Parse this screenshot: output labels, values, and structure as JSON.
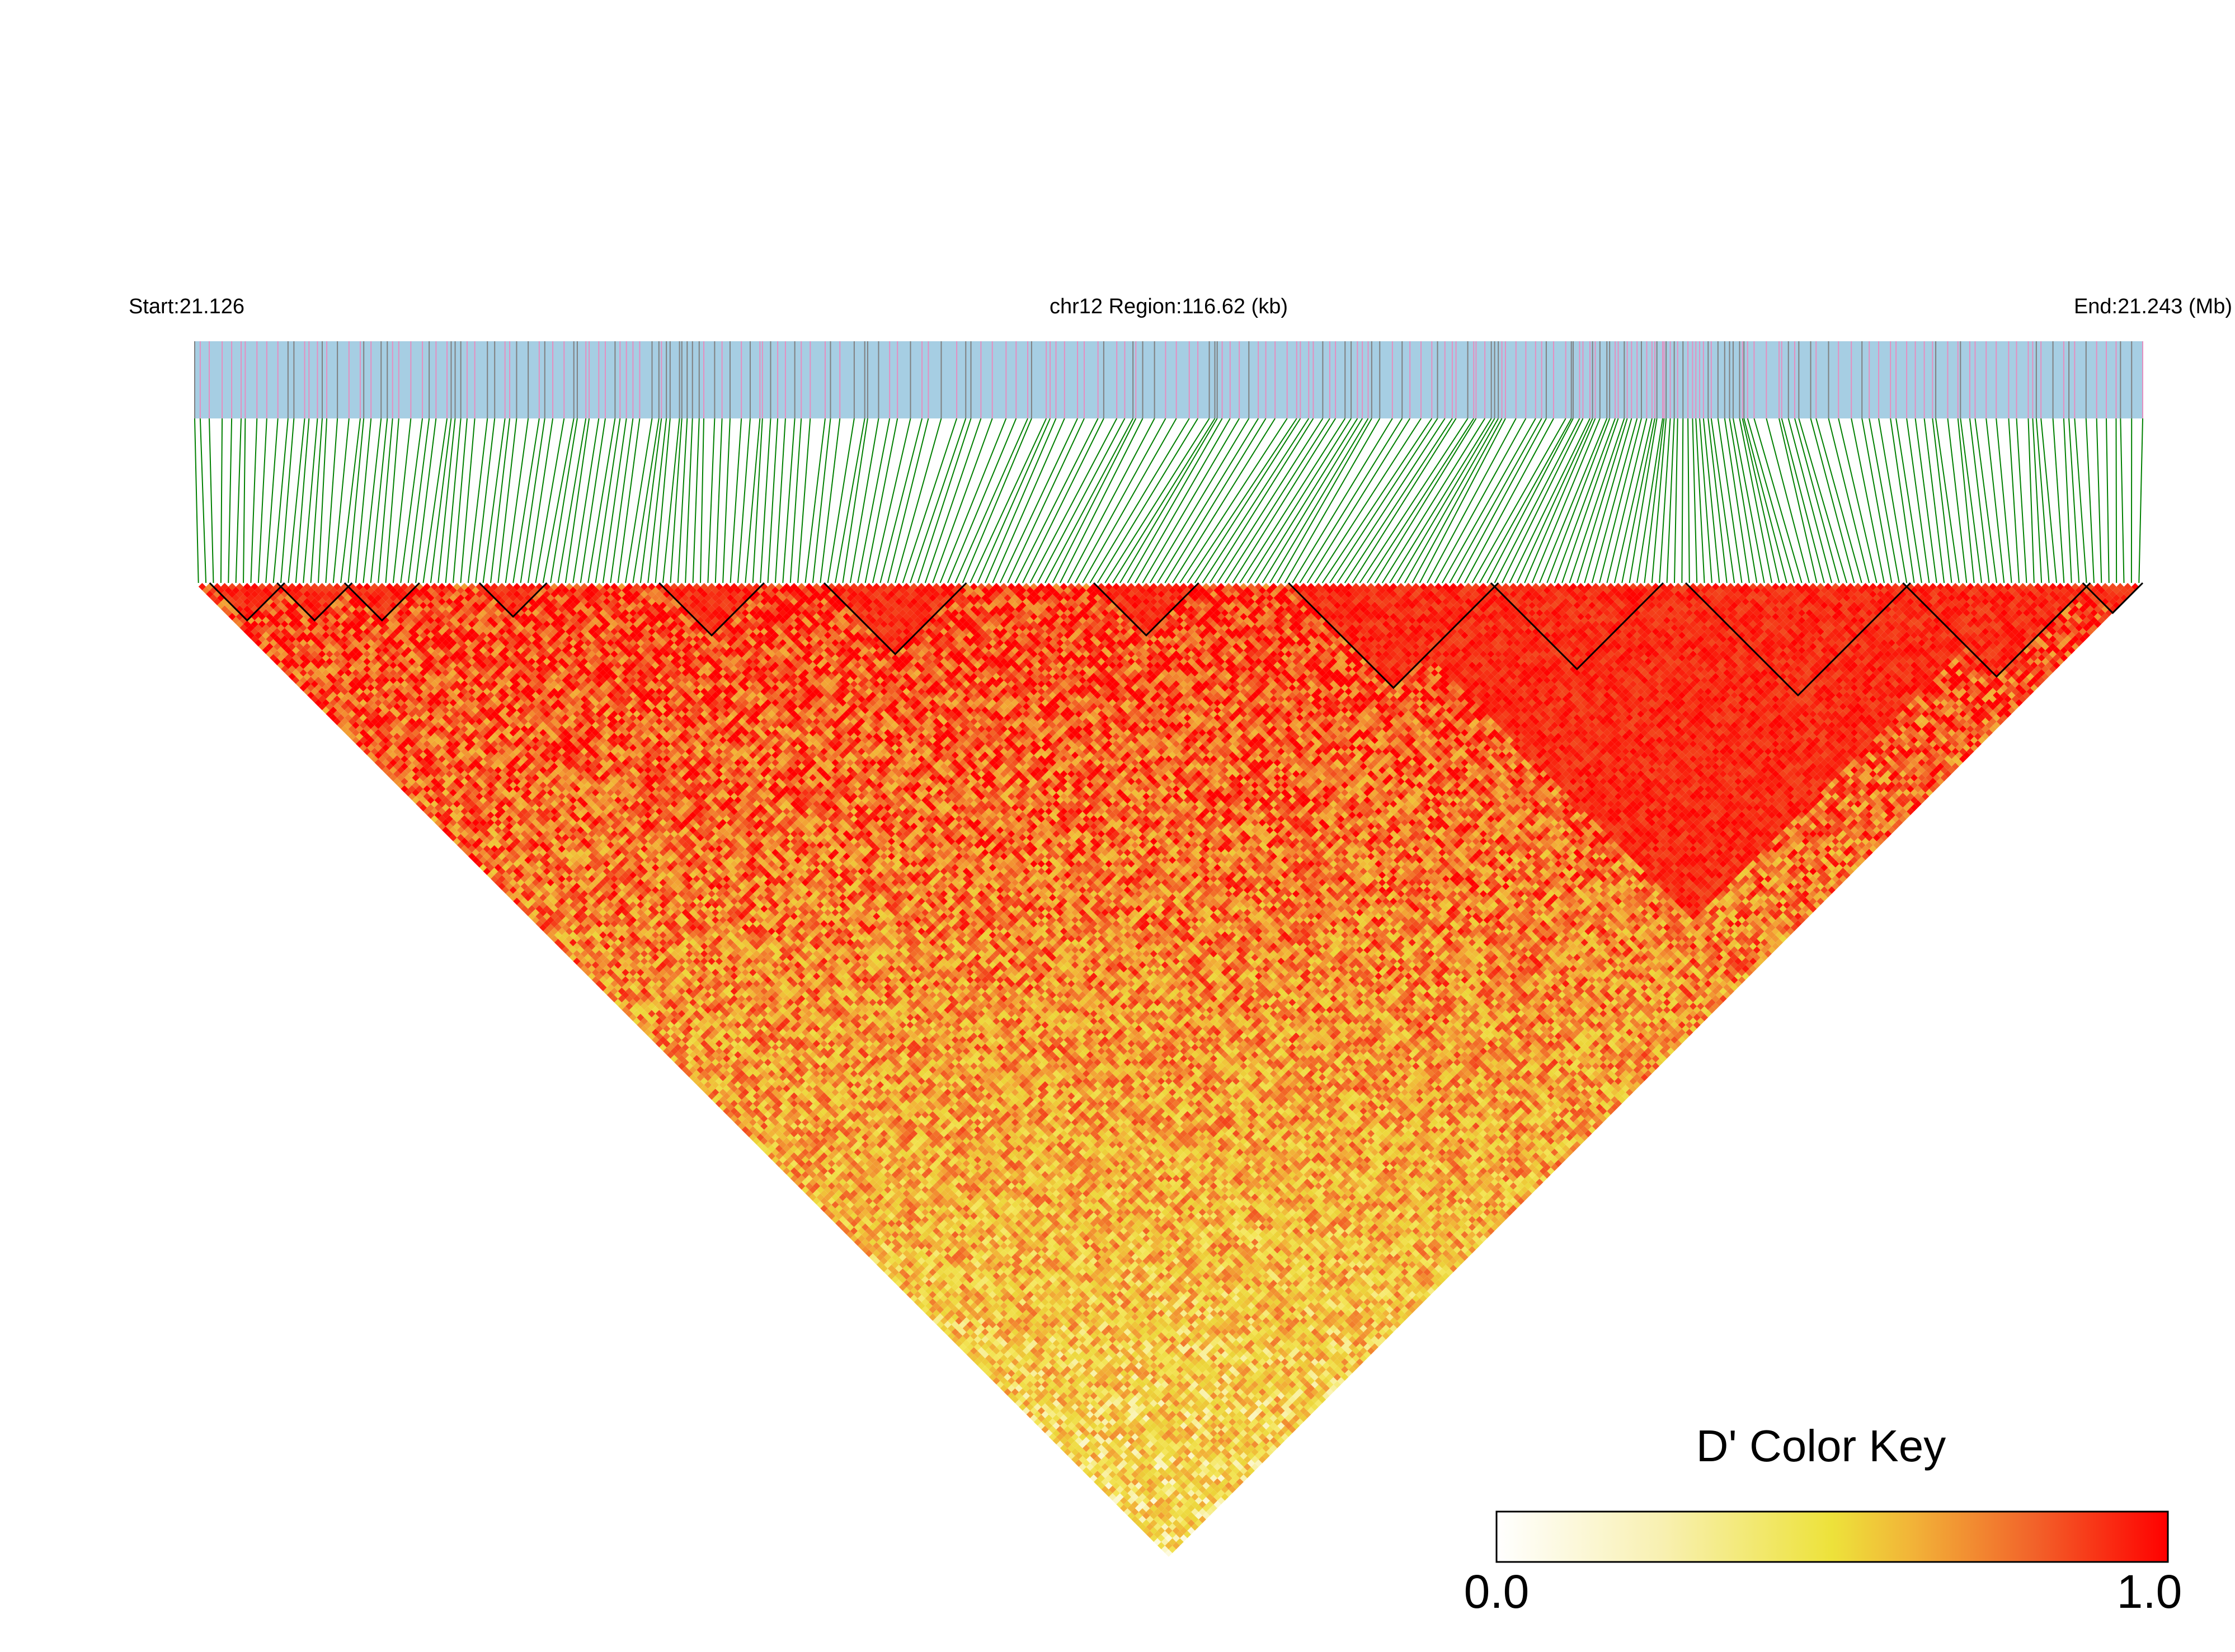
{
  "header": {
    "start_label": "Start:21.126",
    "region_label": "chr12 Region:116.62 (kb)",
    "end_label": "End:21.243 (Mb)"
  },
  "color_key": {
    "title": "D' Color Key",
    "min_label": "0.0",
    "max_label": "1.0",
    "stops": [
      "#ffffff",
      "#fbf6c8",
      "#f4e65a",
      "#ecd63a",
      "#f2b338",
      "#f27f2e",
      "#f24a1e",
      "#ff0000"
    ]
  },
  "colors": {
    "track_background": "#a6cee3",
    "snp_tick_pink": "#e58fc0",
    "snp_tick_gray": "#808080",
    "connector_green": "#008000",
    "block_outline": "#000000"
  },
  "chart_data": {
    "type": "heatmap",
    "title": "",
    "chromosome": "chr12",
    "region_start_mb": 21.126,
    "region_end_mb": 21.243,
    "region_length_kb": 116.62,
    "metric": "D'",
    "value_range": [
      0,
      1
    ],
    "n_snps_approx": 260,
    "haplotype_blocks_approx_mb": [
      [
        21.127,
        21.131
      ],
      [
        21.131,
        21.135
      ],
      [
        21.135,
        21.139
      ],
      [
        21.143,
        21.147
      ],
      [
        21.154,
        21.16
      ],
      [
        21.164,
        21.172
      ],
      [
        21.18,
        21.186
      ],
      [
        21.192,
        21.204
      ],
      [
        21.204,
        21.214
      ],
      [
        21.216,
        21.229
      ],
      [
        21.229,
        21.24
      ],
      [
        21.24,
        21.243
      ]
    ],
    "high_ld_region_mb": [
      21.196,
      21.236
    ],
    "note": ""
  }
}
